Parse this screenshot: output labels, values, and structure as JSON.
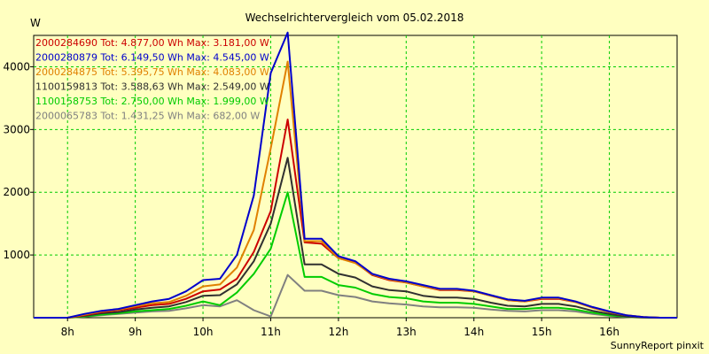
{
  "chart_data": {
    "type": "line",
    "title": "Wechselrichtervergleich vom 05.02.2018",
    "ylabel": "W",
    "footer": "SunnyReport pinxit",
    "xlim": [
      7.5,
      17.0
    ],
    "ylim": [
      0,
      4500
    ],
    "x_ticks": [
      8,
      9,
      10,
      11,
      12,
      13,
      14,
      15,
      16
    ],
    "x_tick_labels": [
      "8h",
      "9h",
      "10h",
      "11h",
      "12h",
      "13h",
      "14h",
      "15h",
      "16h"
    ],
    "y_ticks": [
      1000,
      2000,
      3000,
      4000
    ],
    "y_tick_labels": [
      "1000",
      "2000",
      "3000",
      "4000"
    ],
    "grid": true,
    "legend_position": "top-left",
    "x": [
      7.5,
      7.75,
      8.0,
      8.25,
      8.5,
      8.75,
      9.0,
      9.25,
      9.5,
      9.75,
      10.0,
      10.25,
      10.5,
      10.75,
      11.0,
      11.25,
      11.5,
      11.75,
      12.0,
      12.25,
      12.5,
      12.75,
      13.0,
      13.25,
      13.5,
      13.75,
      14.0,
      14.25,
      14.5,
      14.75,
      15.0,
      15.25,
      15.5,
      15.75,
      16.0,
      16.25,
      16.5,
      16.75,
      17.0
    ],
    "series": [
      {
        "name": "2000284690 Tot: 4.877,00 Wh Max: 3.181,00 W",
        "color": "#cc0000",
        "values": [
          0,
          0,
          0,
          40,
          90,
          120,
          160,
          200,
          220,
          300,
          420,
          450,
          620,
          1050,
          1700,
          3160,
          1200,
          1180,
          950,
          880,
          680,
          600,
          560,
          500,
          440,
          440,
          420,
          350,
          280,
          260,
          300,
          300,
          250,
          160,
          90,
          40,
          10,
          0,
          0
        ]
      },
      {
        "name": "2000280879 Tot: 6.149,50 Wh Max: 4.545,00 W",
        "color": "#0000cc",
        "values": [
          0,
          0,
          0,
          60,
          110,
          140,
          200,
          260,
          300,
          420,
          600,
          620,
          1000,
          1950,
          3900,
          4545,
          1260,
          1260,
          980,
          900,
          700,
          620,
          580,
          520,
          460,
          460,
          430,
          360,
          290,
          270,
          320,
          320,
          260,
          170,
          100,
          40,
          10,
          0,
          0
        ]
      },
      {
        "name": "2000284875 Tot: 5.395,75 Wh Max: 4.083,00 W",
        "color": "#e08000",
        "values": [
          0,
          0,
          0,
          50,
          100,
          130,
          180,
          230,
          250,
          350,
          500,
          530,
          800,
          1400,
          2700,
          4083,
          1220,
          1220,
          950,
          870,
          690,
          610,
          560,
          500,
          450,
          450,
          420,
          350,
          280,
          260,
          310,
          310,
          250,
          160,
          90,
          40,
          10,
          0,
          0
        ]
      },
      {
        "name": "1100159813 Tot: 3.588,63 Wh Max: 2.549,00 W",
        "color": "#303030",
        "values": [
          0,
          0,
          0,
          30,
          70,
          90,
          130,
          160,
          180,
          250,
          350,
          360,
          530,
          900,
          1500,
          2549,
          850,
          850,
          700,
          640,
          500,
          440,
          420,
          350,
          320,
          320,
          300,
          240,
          190,
          180,
          220,
          220,
          180,
          110,
          60,
          20,
          5,
          0,
          0
        ]
      },
      {
        "name": "1100158753 Tot: 2.750,00 Wh Max: 1.999,00 W",
        "color": "#00cc00",
        "values": [
          0,
          0,
          0,
          20,
          50,
          70,
          100,
          120,
          140,
          190,
          260,
          200,
          400,
          700,
          1100,
          1999,
          650,
          650,
          520,
          480,
          380,
          330,
          310,
          260,
          240,
          240,
          220,
          180,
          140,
          140,
          160,
          160,
          130,
          80,
          40,
          15,
          5,
          0,
          0
        ]
      },
      {
        "name": "2000065783 Tot: 1.431,25 Wh Max: 682,00 W",
        "color": "#808080",
        "values": [
          0,
          0,
          0,
          15,
          40,
          60,
          80,
          100,
          110,
          150,
          200,
          180,
          280,
          120,
          20,
          682,
          430,
          430,
          360,
          330,
          260,
          230,
          210,
          180,
          165,
          165,
          160,
          130,
          110,
          100,
          120,
          120,
          100,
          60,
          30,
          10,
          0,
          0,
          0
        ]
      }
    ]
  }
}
